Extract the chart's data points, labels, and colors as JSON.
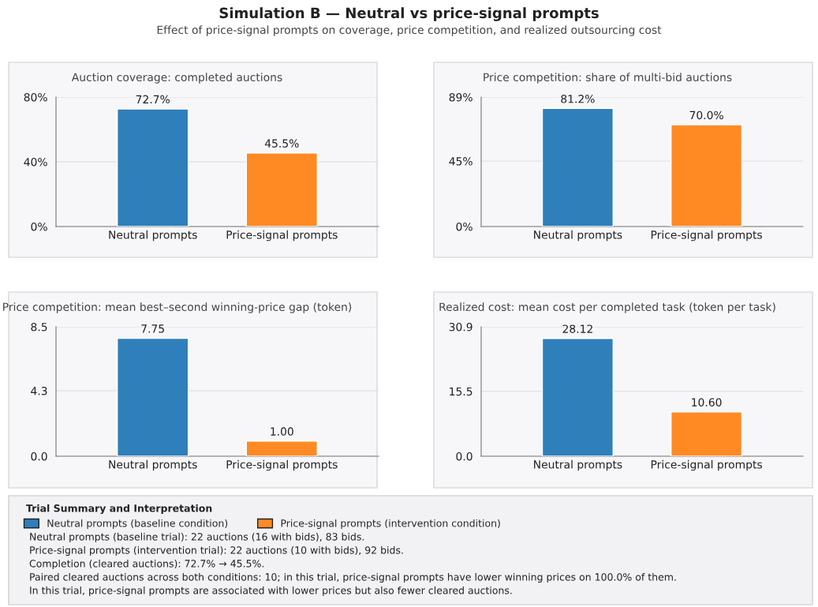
{
  "chart_data": [
    {
      "type": "other",
      "title": "Simulation B — Neutral vs price-signal prompts",
      "subtitle": "Effect of price-signal prompts on coverage, price competition, and realized outsourcing cost"
    },
    {
      "type": "bar",
      "title": "Auction coverage: completed auctions",
      "categories": [
        "Neutral prompts",
        "Price-signal prompts"
      ],
      "values": [
        72.7,
        45.5
      ],
      "colors": [
        "#2f7fba",
        "#ff8a24"
      ],
      "value_labels": [
        "72.7%",
        "45.5%"
      ],
      "ylim": [
        0,
        80
      ],
      "yticks": [
        {
          "value": 0,
          "label": "0%"
        },
        {
          "value": 40,
          "label": "40%"
        },
        {
          "value": 80,
          "label": "80%"
        }
      ],
      "grid": "y"
    },
    {
      "type": "bar",
      "title": "Price competition: share of multi-bid auctions",
      "categories": [
        "Neutral prompts",
        "Price-signal prompts"
      ],
      "values": [
        81.2,
        70.0
      ],
      "colors": [
        "#2f7fba",
        "#ff8a24"
      ],
      "value_labels": [
        "81.2%",
        "70.0%"
      ],
      "ylim": [
        0,
        89
      ],
      "yticks": [
        {
          "value": 0,
          "label": "0%"
        },
        {
          "value": 45,
          "label": "45%"
        },
        {
          "value": 89,
          "label": "89%"
        }
      ],
      "grid": "y"
    },
    {
      "type": "bar",
      "title": "Price competition: mean best–second winning-price gap (token)",
      "categories": [
        "Neutral prompts",
        "Price-signal prompts"
      ],
      "values": [
        7.75,
        1.0
      ],
      "colors": [
        "#2f7fba",
        "#ff8a24"
      ],
      "value_labels": [
        "7.75",
        "1.00"
      ],
      "ylim": [
        0,
        8.5
      ],
      "yticks": [
        {
          "value": 0,
          "label": "0.0"
        },
        4.3,
        8.5
      ],
      "grid": "y"
    },
    {
      "type": "bar",
      "title": "Realized cost: mean cost per completed task (token per task)",
      "categories": [
        "Neutral prompts",
        "Price-signal prompts"
      ],
      "values": [
        28.12,
        10.6
      ],
      "colors": [
        "#2f7fba",
        "#ff8a24"
      ],
      "value_labels": [
        "28.12",
        "10.60"
      ],
      "ylim": [
        0,
        30.9
      ],
      "yticks": [
        {
          "value": 0,
          "label": "0.0"
        },
        15.5,
        30.9
      ],
      "grid": "y"
    },
    {
      "type": "other",
      "title": "Trial Summary and Interpretation",
      "series": [
        {
          "name": "Neutral prompts (baseline condition)",
          "color": "#2f7fba"
        },
        {
          "name": "Price-signal prompts (intervention condition)",
          "color": "#ff8a24"
        }
      ],
      "annotations": [
        "Neutral prompts (baseline trial): 22 auctions (16 with bids), 83 bids.",
        "Price-signal prompts (intervention trial): 22 auctions (10 with bids), 92 bids.",
        "Completion (cleared auctions): 72.7% → 45.5%.",
        "Paired cleared auctions across both conditions: 10; in this trial, price-signal prompts have lower winning prices on 100.0% of them.",
        "In this trial, price-signal prompts are associated with lower prices but also fewer cleared auctions."
      ]
    }
  ]
}
